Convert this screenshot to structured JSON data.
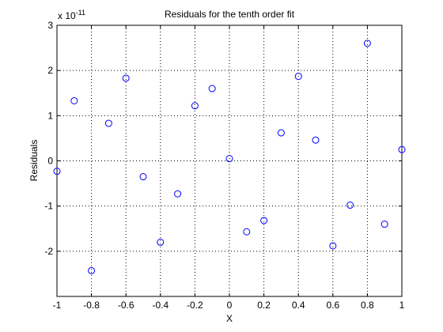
{
  "chart_data": {
    "type": "scatter",
    "title": "Residuals for the tenth order fit",
    "xlabel": "X",
    "ylabel": "Residuals",
    "exponent_label": {
      "base": "x 10",
      "exponent": "-11"
    },
    "xlim": [
      -1,
      1
    ],
    "ylim": [
      -3,
      3
    ],
    "xticks": [
      -1,
      -0.8,
      -0.6,
      -0.4,
      -0.2,
      0,
      0.2,
      0.4,
      0.6,
      0.8,
      1
    ],
    "xtick_labels": [
      "-1",
      "-0.8",
      "-0.6",
      "-0.4",
      "-0.2",
      "0",
      "0.2",
      "0.4",
      "0.6",
      "0.8",
      "1"
    ],
    "yticks": [
      -2,
      -1,
      0,
      1,
      2,
      3
    ],
    "ytick_labels": [
      "-2",
      "-1",
      "0",
      "1",
      "2",
      "3"
    ],
    "grid": true,
    "marker": "circle-open",
    "marker_color": "#0000ff",
    "series": [
      {
        "x": [
          -1,
          -0.9,
          -0.8,
          -0.7,
          -0.6,
          -0.5,
          -0.4,
          -0.3,
          -0.2,
          -0.1,
          0,
          0.1,
          0.2,
          0.3,
          0.4,
          0.5,
          0.6,
          0.7,
          0.8,
          0.9,
          1
        ],
        "y": [
          -0.23,
          1.33,
          -2.43,
          0.83,
          1.83,
          -0.35,
          -1.8,
          -0.73,
          1.22,
          1.6,
          0.05,
          -1.57,
          -1.32,
          0.62,
          1.87,
          0.46,
          -1.88,
          -0.98,
          2.6,
          -1.4,
          0.25
        ]
      }
    ]
  }
}
